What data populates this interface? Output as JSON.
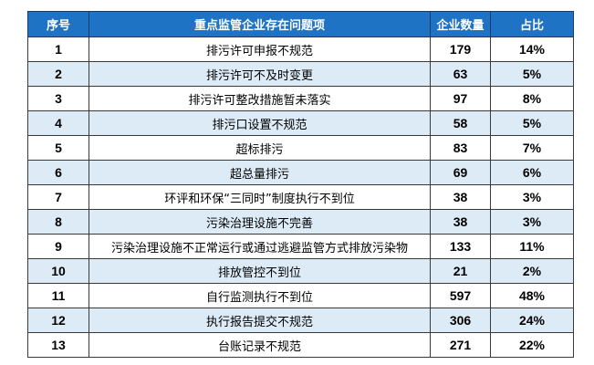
{
  "table": {
    "headers": [
      "序号",
      "重点监管企业存在问题项",
      "企业数量",
      "占比"
    ],
    "rows": [
      [
        "1",
        "排污许可申报不规范",
        "179",
        "14%"
      ],
      [
        "2",
        "排污许可不及时变更",
        "63",
        "5%"
      ],
      [
        "3",
        "排污许可整改措施暂未落实",
        "97",
        "8%"
      ],
      [
        "4",
        "排污口设置不规范",
        "58",
        "5%"
      ],
      [
        "5",
        "超标排污",
        "83",
        "7%"
      ],
      [
        "6",
        "超总量排污",
        "69",
        "6%"
      ],
      [
        "7",
        "环评和环保“三同时”制度执行不到位",
        "38",
        "3%"
      ],
      [
        "8",
        "污染治理设施不完善",
        "38",
        "3%"
      ],
      [
        "9",
        "污染治理设施不正常运行或通过逃避监管方式排放污染物",
        "133",
        "11%"
      ],
      [
        "10",
        "排放管控不到位",
        "21",
        "2%"
      ],
      [
        "11",
        "自行监测执行不到位",
        "597",
        "48%"
      ],
      [
        "12",
        "执行报告提交不规范",
        "306",
        "24%"
      ],
      [
        "13",
        "台账记录不规范",
        "271",
        "22%"
      ]
    ]
  },
  "colors": {
    "header": "#1f73c4",
    "alt_row": "#ddebf7"
  }
}
